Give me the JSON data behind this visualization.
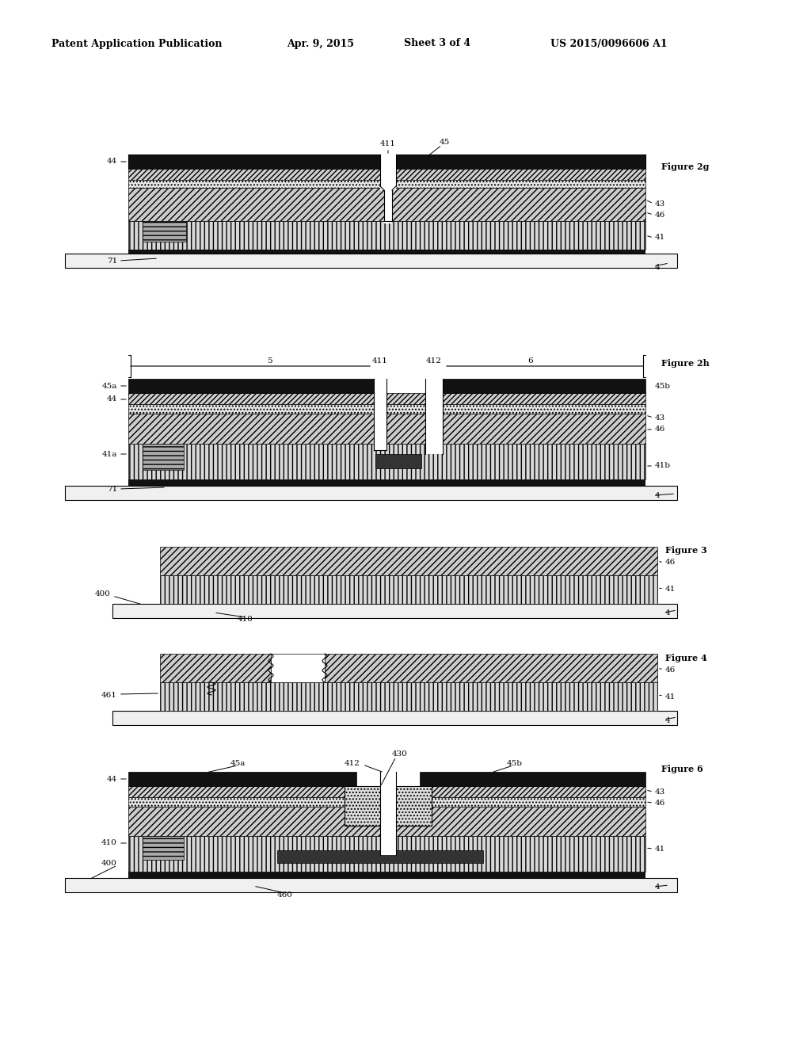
{
  "bg_color": "#ffffff",
  "header_text": "Patent Application Publication",
  "header_date": "Apr. 9, 2015",
  "header_sheet": "Sheet 3 of 4",
  "header_patent": "US 2015/0096606 A1"
}
